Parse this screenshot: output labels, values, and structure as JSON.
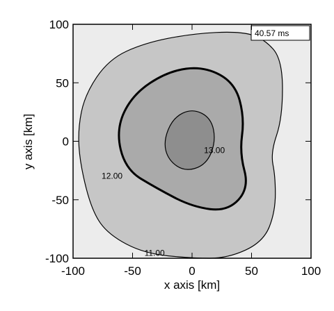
{
  "chart_data": {
    "type": "contour",
    "annotation": "40.57 ms",
    "x_label": "x axis [km]",
    "y_label": "y axis [km]",
    "xlim": [
      -100,
      100
    ],
    "ylim": [
      -100,
      100
    ],
    "xticks": [
      -100,
      -50,
      0,
      50,
      100
    ],
    "yticks": [
      -100,
      -50,
      0,
      50,
      100
    ],
    "levels": [
      {
        "value": 11,
        "label": "11.00"
      },
      {
        "value": 12,
        "label": "12.00"
      },
      {
        "value": 13,
        "label": "13.00"
      }
    ],
    "level_colors": [
      "#c6c6c6",
      "#aaaaaa",
      "#8e8e8e"
    ],
    "background_color": "#ececec"
  }
}
